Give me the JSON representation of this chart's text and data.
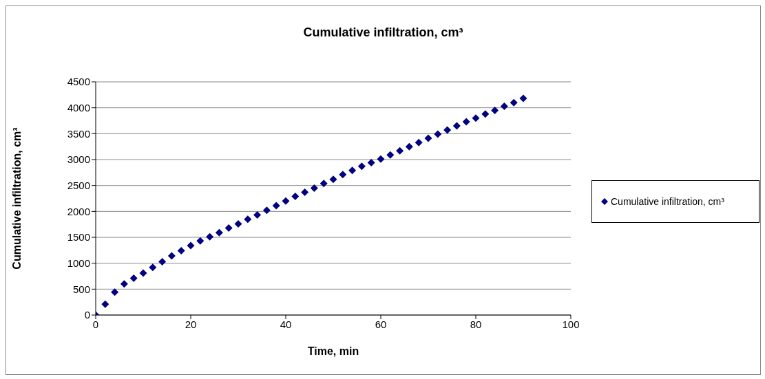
{
  "chart_data": {
    "type": "scatter",
    "title": "Cumulative infiltration, cm³",
    "xlabel": "Time, min",
    "ylabel": "Cumulative infiltration, cm³",
    "x": [
      0,
      2,
      4,
      6,
      8,
      10,
      12,
      14,
      16,
      18,
      20,
      22,
      24,
      26,
      28,
      30,
      32,
      34,
      36,
      38,
      40,
      42,
      44,
      46,
      48,
      50,
      52,
      54,
      56,
      58,
      60,
      62,
      64,
      66,
      68,
      70,
      72,
      74,
      76,
      78,
      80,
      82,
      84,
      86,
      88,
      90
    ],
    "series": [
      {
        "name": "Cumulative infiltration, cm³",
        "color": "#000080",
        "values": [
          0,
          210,
          440,
          600,
          710,
          810,
          920,
          1030,
          1140,
          1240,
          1340,
          1430,
          1510,
          1590,
          1680,
          1760,
          1850,
          1930,
          2020,
          2110,
          2200,
          2290,
          2370,
          2450,
          2540,
          2620,
          2710,
          2790,
          2870,
          2940,
          3010,
          3090,
          3170,
          3250,
          3330,
          3410,
          3490,
          3570,
          3650,
          3730,
          3800,
          3880,
          3950,
          4030,
          4100,
          4180
        ]
      }
    ],
    "xlim": [
      0,
      100
    ],
    "xticks": [
      0,
      20,
      40,
      60,
      80,
      100
    ],
    "ylim": [
      0,
      4500
    ],
    "yticks": [
      0,
      500,
      1000,
      1500,
      2000,
      2500,
      3000,
      3500,
      4000,
      4500
    ],
    "grid": "y",
    "legend": "right",
    "marker": "diamond"
  }
}
